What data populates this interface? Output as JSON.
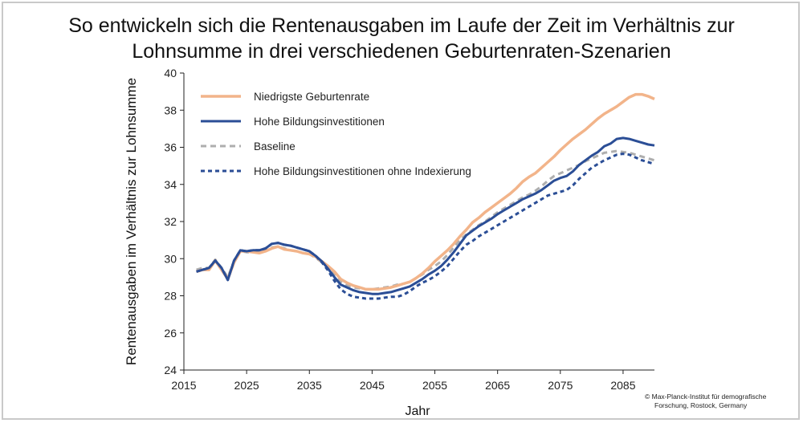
{
  "title_line1": "So entwickeln sich die Rentenausgaben im Laufe der Zeit im Verhältnis zur",
  "title_line2": "Lohnsumme in drei verschiedenen Geburtenraten-Szenarien",
  "credit_line1": "© Max-Planck-Institut für demografische",
  "credit_line2": "Forschung, Rostock, Germany",
  "chart_data": {
    "type": "line",
    "title": "So entwickeln sich die Rentenausgaben im Laufe der Zeit im Verhältnis zur Lohnsumme in drei verschiedenen Geburtenraten-Szenarien",
    "xlabel": "Jahr",
    "ylabel": "Rentenausgaben im Verhältnis zur Lohnsumme",
    "xlim": [
      2015,
      2090
    ],
    "ylim": [
      24,
      40
    ],
    "xticks": [
      "2015",
      "2025",
      "2035",
      "2045",
      "2055",
      "2065",
      "2075",
      "2085"
    ],
    "yticks": [
      "24",
      "26",
      "28",
      "30",
      "32",
      "34",
      "36",
      "38",
      "40"
    ],
    "grid": false,
    "legend_position": "top-left",
    "x": [
      2017,
      2018,
      2019,
      2020,
      2021,
      2022,
      2023,
      2024,
      2025,
      2026,
      2027,
      2028,
      2029,
      2030,
      2031,
      2032,
      2033,
      2034,
      2035,
      2036,
      2037,
      2038,
      2039,
      2040,
      2041,
      2042,
      2043,
      2044,
      2045,
      2046,
      2047,
      2048,
      2049,
      2050,
      2051,
      2052,
      2053,
      2054,
      2055,
      2056,
      2057,
      2058,
      2059,
      2060,
      2061,
      2062,
      2063,
      2064,
      2065,
      2066,
      2067,
      2068,
      2069,
      2070,
      2071,
      2072,
      2073,
      2074,
      2075,
      2076,
      2077,
      2078,
      2079,
      2080,
      2081,
      2082,
      2083,
      2084,
      2085,
      2086,
      2087,
      2088,
      2089,
      2090
    ],
    "series": [
      {
        "name": "Niedrigste Geburtenrate",
        "color": "#f2b48a",
        "dash": "solid",
        "values": [
          29.3,
          29.4,
          29.4,
          29.9,
          29.4,
          28.9,
          29.8,
          30.4,
          30.4,
          30.35,
          30.3,
          30.4,
          30.55,
          30.65,
          30.5,
          30.45,
          30.4,
          30.3,
          30.25,
          30.1,
          29.85,
          29.6,
          29.3,
          28.9,
          28.7,
          28.55,
          28.45,
          28.35,
          28.35,
          28.35,
          28.4,
          28.45,
          28.55,
          28.65,
          28.75,
          28.95,
          29.2,
          29.5,
          29.85,
          30.15,
          30.45,
          30.8,
          31.2,
          31.55,
          31.95,
          32.2,
          32.5,
          32.75,
          33.0,
          33.25,
          33.5,
          33.8,
          34.15,
          34.4,
          34.6,
          34.9,
          35.2,
          35.5,
          35.85,
          36.15,
          36.45,
          36.7,
          36.95,
          37.25,
          37.55,
          37.8,
          38.0,
          38.2,
          38.45,
          38.7,
          38.85,
          38.85,
          38.75,
          38.6
        ]
      },
      {
        "name": "Hohe Bildungsinvestitionen",
        "color": "#2b4e96",
        "dash": "solid",
        "values": [
          29.3,
          29.4,
          29.5,
          29.9,
          29.5,
          28.85,
          29.9,
          30.45,
          30.4,
          30.45,
          30.45,
          30.55,
          30.8,
          30.85,
          30.75,
          30.7,
          30.6,
          30.5,
          30.4,
          30.15,
          29.85,
          29.45,
          29.0,
          28.6,
          28.45,
          28.3,
          28.2,
          28.15,
          28.1,
          28.1,
          28.15,
          28.2,
          28.3,
          28.4,
          28.5,
          28.7,
          28.9,
          29.15,
          29.35,
          29.6,
          29.95,
          30.35,
          30.8,
          31.25,
          31.5,
          31.75,
          31.95,
          32.15,
          32.4,
          32.6,
          32.8,
          33.0,
          33.2,
          33.35,
          33.5,
          33.7,
          33.95,
          34.2,
          34.35,
          34.45,
          34.7,
          35.05,
          35.3,
          35.55,
          35.75,
          36.05,
          36.2,
          36.45,
          36.5,
          36.45,
          36.35,
          36.25,
          36.15,
          36.1
        ]
      },
      {
        "name": "Baseline",
        "color": "#aeaeae",
        "dash": "dashed",
        "values": [
          29.4,
          29.5,
          29.5,
          29.95,
          29.5,
          29.0,
          29.9,
          30.4,
          30.35,
          30.35,
          30.35,
          30.45,
          30.6,
          30.65,
          30.55,
          30.45,
          30.4,
          30.3,
          30.25,
          30.05,
          29.8,
          29.5,
          29.1,
          28.75,
          28.55,
          28.45,
          28.4,
          28.35,
          28.35,
          28.4,
          28.45,
          28.5,
          28.6,
          28.65,
          28.75,
          28.95,
          29.15,
          29.4,
          29.6,
          29.85,
          30.2,
          30.6,
          31.0,
          31.3,
          31.55,
          31.8,
          32.0,
          32.25,
          32.5,
          32.7,
          32.9,
          33.1,
          33.3,
          33.45,
          33.65,
          33.9,
          34.2,
          34.45,
          34.6,
          34.75,
          34.9,
          35.05,
          35.25,
          35.4,
          35.55,
          35.7,
          35.75,
          35.8,
          35.75,
          35.7,
          35.6,
          35.5,
          35.4,
          35.3
        ]
      },
      {
        "name": "Hohe Bildungsinvestitionen ohne Indexierung",
        "color": "#2b4e96",
        "dash": "dotted",
        "values": [
          29.3,
          29.4,
          29.5,
          29.9,
          29.5,
          28.85,
          29.9,
          30.45,
          30.4,
          30.45,
          30.45,
          30.55,
          30.8,
          30.85,
          30.75,
          30.7,
          30.6,
          30.5,
          30.4,
          30.15,
          29.8,
          29.35,
          28.8,
          28.35,
          28.1,
          27.95,
          27.9,
          27.85,
          27.85,
          27.85,
          27.9,
          27.95,
          27.95,
          28.05,
          28.25,
          28.5,
          28.7,
          28.85,
          29.05,
          29.3,
          29.6,
          30.0,
          30.4,
          30.75,
          30.95,
          31.2,
          31.4,
          31.6,
          31.8,
          32.0,
          32.2,
          32.4,
          32.6,
          32.8,
          33.0,
          33.2,
          33.4,
          33.5,
          33.6,
          33.7,
          33.95,
          34.3,
          34.6,
          34.9,
          35.1,
          35.3,
          35.45,
          35.6,
          35.65,
          35.6,
          35.45,
          35.3,
          35.2,
          35.1
        ]
      }
    ]
  }
}
